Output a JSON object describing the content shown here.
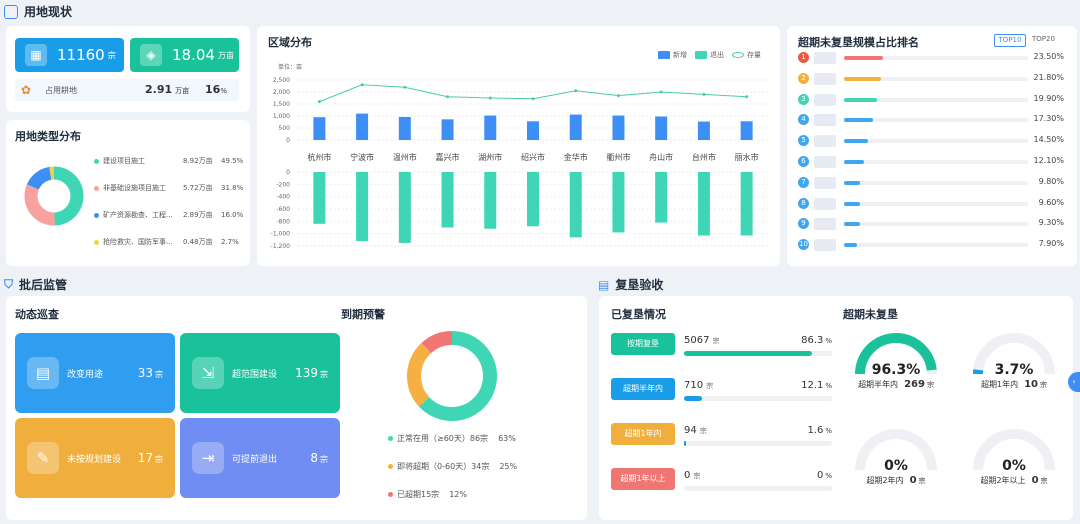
{
  "sections": {
    "land_status": "用地现状",
    "post_approval": "批后监管",
    "reclamation": "复垦验收"
  },
  "colors": {
    "blue": "#1a9de8",
    "green": "#19c29b",
    "teal": "#3ed6b5",
    "orange": "#f5b041",
    "red": "#f07573",
    "purple": "#6f8df2",
    "bar_blue": "#3d8ff5"
  },
  "summary": {
    "stat1": {
      "value": "11160",
      "unit": "宗",
      "icon": "building-icon"
    },
    "stat2": {
      "value": "18.04",
      "unit": "万亩",
      "icon": "map-icon"
    },
    "farmland": {
      "label": "占用耕地",
      "value": "2.91",
      "unit": "万亩",
      "pct": "16",
      "pct_unit": "%",
      "icon": "palette-icon"
    }
  },
  "land_type": {
    "title": "用地类型分布",
    "items": [
      {
        "name": "建设项目施工",
        "value": "8.92万亩",
        "pct": "49.5%",
        "color": "#3ed6b5"
      },
      {
        "name": "非基础设施项目施工",
        "value": "5.72万亩",
        "pct": "31.8%",
        "color": "#f7a1a1"
      },
      {
        "name": "矿产资源勘查、工程...",
        "value": "2.89万亩",
        "pct": "16.0%",
        "color": "#3d8ff5"
      },
      {
        "name": "抢险救灾、国防军事...",
        "value": "0.48万亩",
        "pct": "2.7%",
        "color": "#f5d142"
      }
    ]
  },
  "region": {
    "title": "区域分布",
    "legend": [
      "新增",
      "退出",
      "存量"
    ],
    "unit_label": "单位：亩"
  },
  "chart_data": {
    "type": "bar",
    "categories": [
      "杭州市",
      "宁波市",
      "温州市",
      "嘉兴市",
      "湖州市",
      "绍兴市",
      "金华市",
      "衢州市",
      "舟山市",
      "台州市",
      "丽水市"
    ],
    "y_ticks_top": [
      "2,500",
      "2,000",
      "1,500",
      "1,000",
      "500",
      "0"
    ],
    "y_ticks_bottom": [
      "0",
      "-200",
      "-400",
      "-600",
      "-800",
      "-1,000",
      "-1,200"
    ],
    "ylim_top": [
      0,
      2500
    ],
    "ylim_bottom": [
      -1200,
      0
    ],
    "series": [
      {
        "name": "新增",
        "values": [
          950,
          1100,
          960,
          860,
          1020,
          780,
          1060,
          1020,
          980,
          770,
          780
        ]
      },
      {
        "name": "退出",
        "values": [
          -840,
          -1120,
          -1150,
          -900,
          -920,
          -880,
          -1060,
          -980,
          -820,
          -1030,
          -1030
        ]
      },
      {
        "name": "存量",
        "values": [
          1600,
          2300,
          2200,
          1800,
          1750,
          1720,
          2050,
          1850,
          2000,
          1900,
          1800
        ]
      }
    ]
  },
  "ranking": {
    "title": "超期未复垦规模占比排名",
    "tabs": [
      "TOP10",
      "TOP20"
    ],
    "items": [
      {
        "rank": "1",
        "value": "23.50%",
        "pct": 23.5,
        "color": "#f0573f",
        "fill": "#f07573"
      },
      {
        "rank": "2",
        "value": "21.80%",
        "pct": 21.8,
        "color": "#f5b041",
        "fill": "#f5b041"
      },
      {
        "rank": "3",
        "value": "19.90%",
        "pct": 19.9,
        "color": "#3ed6b5",
        "fill": "#3ed6b5"
      },
      {
        "rank": "4",
        "value": "17.30%",
        "pct": 17.3,
        "color": "#3fa7f2",
        "fill": "#3fa7f2"
      },
      {
        "rank": "5",
        "value": "14.50%",
        "pct": 14.5,
        "color": "#3fa7f2",
        "fill": "#3fa7f2"
      },
      {
        "rank": "6",
        "value": "12.10%",
        "pct": 12.1,
        "color": "#3fa7f2",
        "fill": "#3fa7f2"
      },
      {
        "rank": "7",
        "value": "9.80%",
        "pct": 9.8,
        "color": "#3fa7f2",
        "fill": "#3fa7f2"
      },
      {
        "rank": "8",
        "value": "9.60%",
        "pct": 9.6,
        "color": "#3fa7f2",
        "fill": "#3fa7f2"
      },
      {
        "rank": "9",
        "value": "9.30%",
        "pct": 9.3,
        "color": "#3fa7f2",
        "fill": "#3fa7f2"
      },
      {
        "rank": "10",
        "value": "7.90%",
        "pct": 7.9,
        "color": "#3fa7f2",
        "fill": "#3fa7f2"
      }
    ]
  },
  "patrol": {
    "title": "动态巡查",
    "cards": [
      {
        "label": "改变用途",
        "value": "33",
        "unit": "宗",
        "color": "#2f9df0",
        "icon": "document-icon"
      },
      {
        "label": "超范围建设",
        "value": "139",
        "unit": "宗",
        "color": "#19c29b",
        "icon": "expand-icon"
      },
      {
        "label": "未按规划建设",
        "value": "17",
        "unit": "宗",
        "color": "#f0ae3c",
        "icon": "tools-icon"
      },
      {
        "label": "可提前退出",
        "value": "8",
        "unit": "宗",
        "color": "#6f8df2",
        "icon": "exit-icon"
      }
    ]
  },
  "expiry": {
    "title": "到期预警",
    "items": [
      {
        "label": "正常在用（≥60天）86宗",
        "pct": "63%",
        "value": 63,
        "color": "#3ed6b5"
      },
      {
        "label": "即将超期（0-60天）34宗",
        "pct": "25%",
        "value": 25,
        "color": "#f5b041"
      },
      {
        "label": "已超期15宗",
        "pct": "12%",
        "value": 12,
        "color": "#f07573"
      }
    ]
  },
  "reclaimed": {
    "title": "已复垦情况",
    "rows": [
      {
        "tag": "按期复垦",
        "count": "5067",
        "unit": "宗",
        "pct": "86.3",
        "pct_unit": "%",
        "value": 86.3,
        "color": "#19c29b"
      },
      {
        "tag": "超期半年内",
        "count": "710",
        "unit": "宗",
        "pct": "12.1",
        "pct_unit": "%",
        "value": 12.1,
        "color": "#1a9de8"
      },
      {
        "tag": "超期1年内",
        "count": "94",
        "unit": "宗",
        "pct": "1.6",
        "pct_unit": "%",
        "value": 1.6,
        "color": "#f0ae3c"
      },
      {
        "tag": "超期1年以上",
        "count": "0",
        "unit": "宗",
        "pct": "0",
        "pct_unit": "%",
        "value": 0,
        "color": "#f07573"
      }
    ]
  },
  "unreclaimed": {
    "title": "超期未复垦",
    "gauges": [
      {
        "pct": "96.3%",
        "value": 96.3,
        "label": "超期半年内",
        "count": "269",
        "unit": "宗",
        "color": "#19c29b"
      },
      {
        "pct": "3.7%",
        "value": 3.7,
        "label": "超期1年内",
        "count": "10",
        "unit": "宗",
        "color": "#1a9de8"
      },
      {
        "pct": "0%",
        "value": 0,
        "label": "超期2年内",
        "count": "0",
        "unit": "宗",
        "color": "#19c29b"
      },
      {
        "pct": "0%",
        "value": 0,
        "label": "超期2年以上",
        "count": "0",
        "unit": "宗",
        "color": "#19c29b"
      }
    ]
  }
}
